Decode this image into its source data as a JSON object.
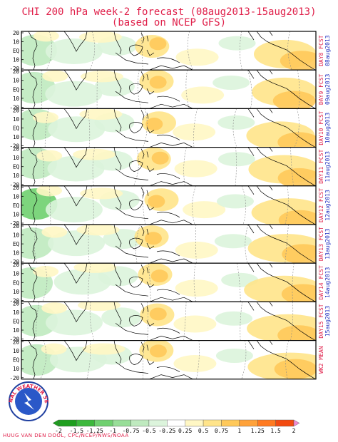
{
  "chart_data": {
    "type": "heatmap",
    "title": "CHI 200 hPa week-2 forecast (08aug2013-15aug2013)",
    "subtitle": "(based on NCEP GFS)",
    "panels": [
      {
        "label": "DAY8 FCST",
        "date": "08aug2013"
      },
      {
        "label": "DAY9 FCST",
        "date": "09aug2013"
      },
      {
        "label": "DAY10 FCST",
        "date": "10aug2013"
      },
      {
        "label": "DAY11 FCST",
        "date": "11aug2013"
      },
      {
        "label": "DAY12 FCST",
        "date": "12aug2013"
      },
      {
        "label": "DAY13 FCST",
        "date": "13aug2013"
      },
      {
        "label": "DAY14 FCST",
        "date": "14aug2013"
      },
      {
        "label": "DAY15 FCST",
        "date": "15aug2013"
      },
      {
        "label": "WK2 MEAN",
        "date": ""
      }
    ],
    "y_ticks": [
      "20",
      "10",
      "EQ",
      "10",
      "-20"
    ],
    "colorbar": {
      "ticks": [
        "-2",
        "-1.5",
        "-1.25",
        "-1",
        "-0.75",
        "-0.5",
        "-0.25",
        "0.25",
        "0.5",
        "0.75",
        "1",
        "1.25",
        "1.5",
        "2"
      ],
      "colors": [
        "#1f9e1f",
        "#3cb83c",
        "#6fd06f",
        "#98de98",
        "#bfeabf",
        "#dcf4dc",
        "#ffffff",
        "#fff7c4",
        "#ffe48a",
        "#ffc95a",
        "#ffa23a",
        "#ff7a20",
        "#f24a10"
      ]
    },
    "footer": "HUUG VAN DEN DOOL, CPC/NCEP/NWS/NOAA"
  },
  "logo_text": "NATIONAL WEATHER SERVICE",
  "colors": {
    "title": "#e0204a",
    "date": "#2030c0",
    "frame": "#000000"
  }
}
